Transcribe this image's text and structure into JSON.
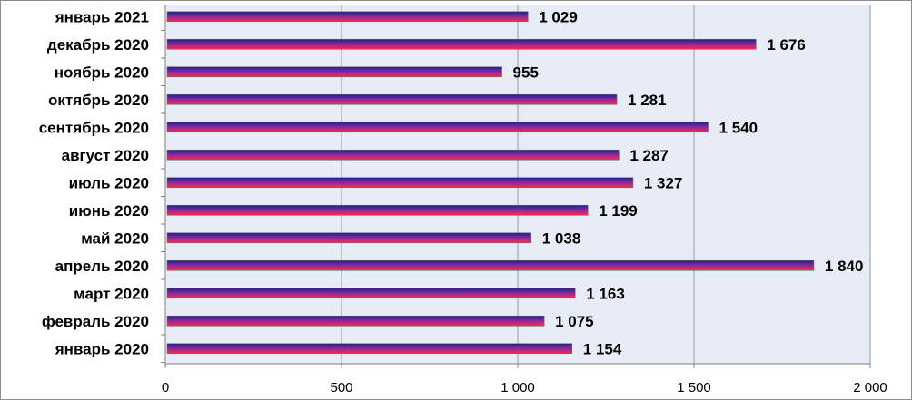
{
  "chart_data": {
    "type": "bar",
    "orientation": "horizontal",
    "categories": [
      "январь 2021",
      "декабрь 2020",
      "ноябрь 2020",
      "октябрь 2020",
      "сентябрь 2020",
      "август 2020",
      "июль 2020",
      "июнь 2020",
      "май 2020",
      "апрель 2020",
      "март 2020",
      "февраль 2020",
      "январь 2020"
    ],
    "values": [
      1029,
      1676,
      955,
      1281,
      1540,
      1287,
      1327,
      1199,
      1038,
      1840,
      1163,
      1075,
      1154
    ],
    "value_labels": [
      "1 029",
      "1 676",
      "955",
      "1 281",
      "1 540",
      "1 287",
      "1 327",
      "1 199",
      "1 038",
      "1 840",
      "1 163",
      "1 075",
      "1 154"
    ],
    "xlim": [
      0,
      2000
    ],
    "xticks": [
      0,
      500,
      1000,
      1500,
      2000
    ],
    "xtick_labels": [
      "0",
      "500",
      "1 000",
      "1 500",
      "2 000"
    ],
    "grid": "vertical",
    "legend": "none",
    "colors": {
      "bar_top": "#1f1f8f",
      "bar_mid": "#8a2a9a",
      "bar_bottom": "#ff2a4a",
      "plot_background": "#e8ecf6",
      "gridline": "#9a9a9a"
    }
  }
}
